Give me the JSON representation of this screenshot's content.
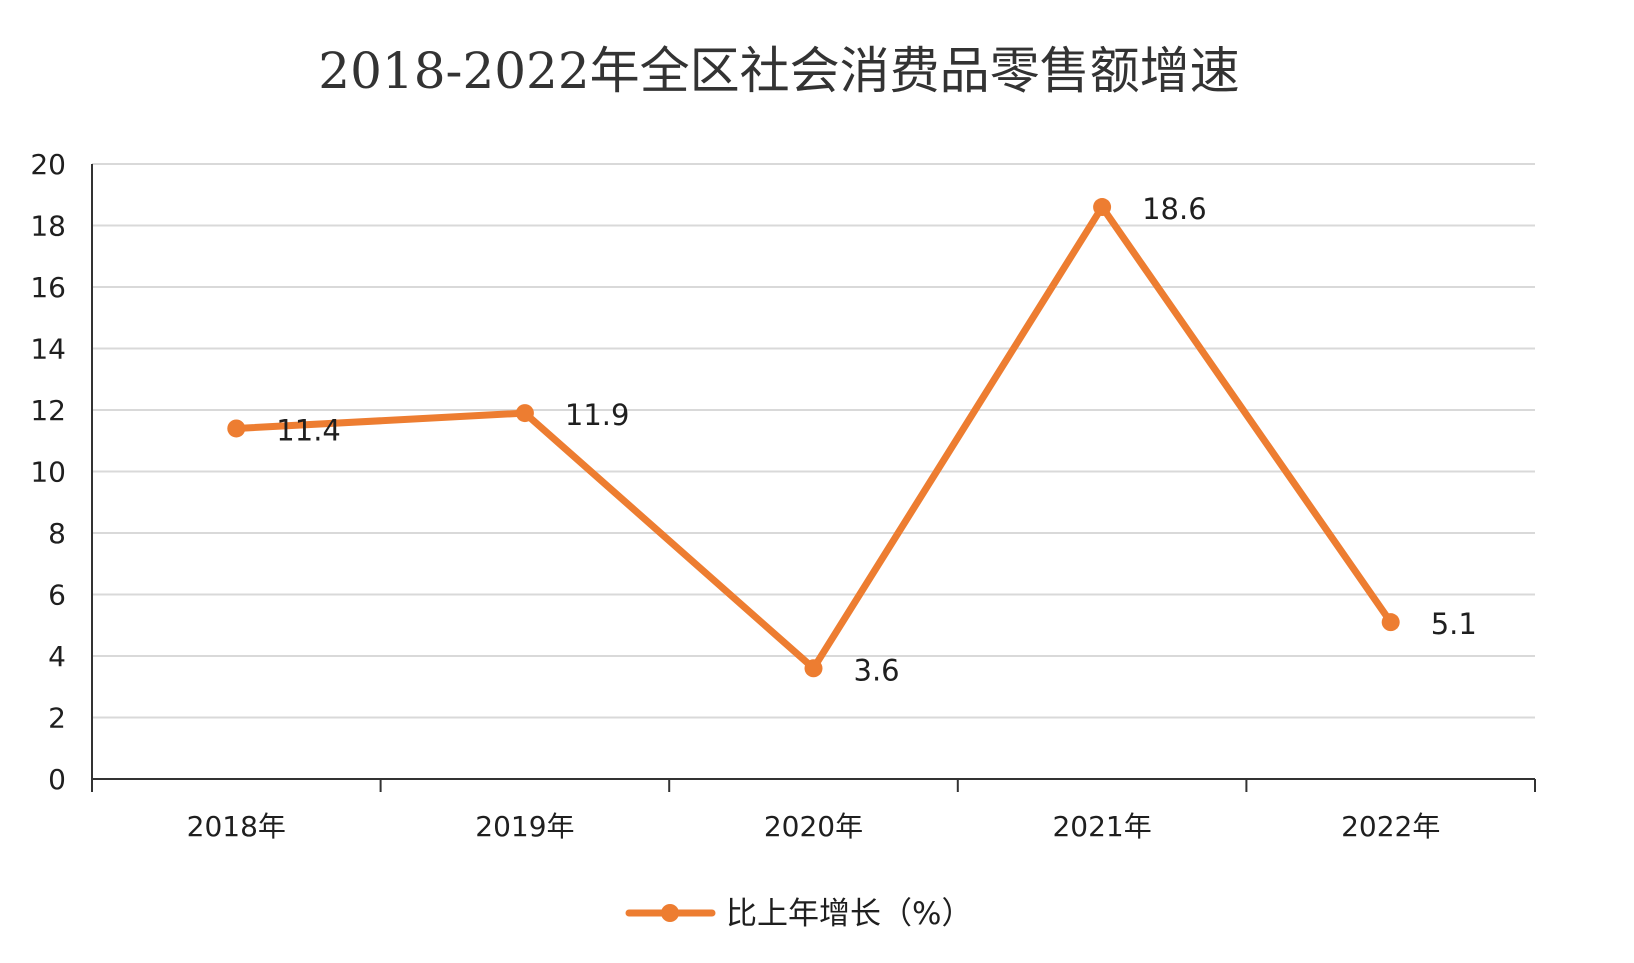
{
  "chart_data": {
    "type": "line",
    "title": "2018-2022年全区社会消费品零售额增速",
    "categories": [
      "2018年",
      "2019年",
      "2020年",
      "2021年",
      "2022年"
    ],
    "series": [
      {
        "name": "比上年增长（%）",
        "values": [
          11.4,
          11.9,
          3.6,
          18.6,
          5.1
        ],
        "color": "#ED7D31"
      }
    ],
    "ylim": [
      0,
      20
    ],
    "y_ticks": [
      "0",
      "2",
      "4",
      "6",
      "8",
      "10",
      "12",
      "14",
      "16",
      "18",
      "20"
    ],
    "data_labels": [
      "11.4",
      "11.9",
      "3.6",
      "18.6",
      "5.1"
    ],
    "xlabel": "",
    "ylabel": "",
    "grid": true,
    "legend_position": "bottom",
    "colors": {
      "line": "#ED7D31",
      "grid": "#d9d9d9",
      "axis": "#333333"
    }
  }
}
